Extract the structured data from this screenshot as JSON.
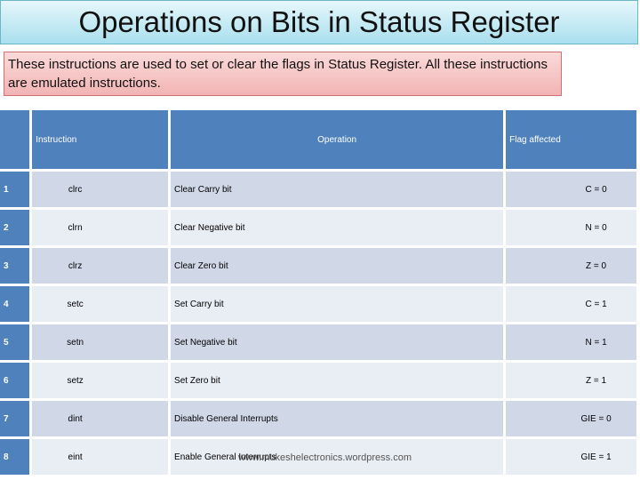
{
  "title": "Operations on Bits in Status Register",
  "intro": "These instructions are used to set or clear the flags in Status Register. All these instructions are emulated instructions.",
  "table": {
    "header": [
      "Instruction",
      "Operation",
      "Flag affected"
    ],
    "rows": [
      [
        "1",
        "clrc",
        "Clear Carry bit",
        "C = 0"
      ],
      [
        "2",
        "clrn",
        "Clear Negative bit",
        "N = 0"
      ],
      [
        "3",
        "clrz",
        "Clear Zero bit",
        "Z = 0"
      ],
      [
        "4",
        "setc",
        "Set Carry bit",
        "C = 1"
      ],
      [
        "5",
        "setn",
        "Set Negative bit",
        "N = 1"
      ],
      [
        "6",
        "setz",
        "Set Zero bit",
        "Z = 1"
      ],
      [
        "7",
        "dint",
        "Disable General Interrupts",
        "GIE = 0"
      ],
      [
        "8",
        "eint",
        "Enable General Interrupts",
        "GIE = 1"
      ]
    ]
  },
  "watermark": "www.mukeshelectronics.wordpress.com"
}
